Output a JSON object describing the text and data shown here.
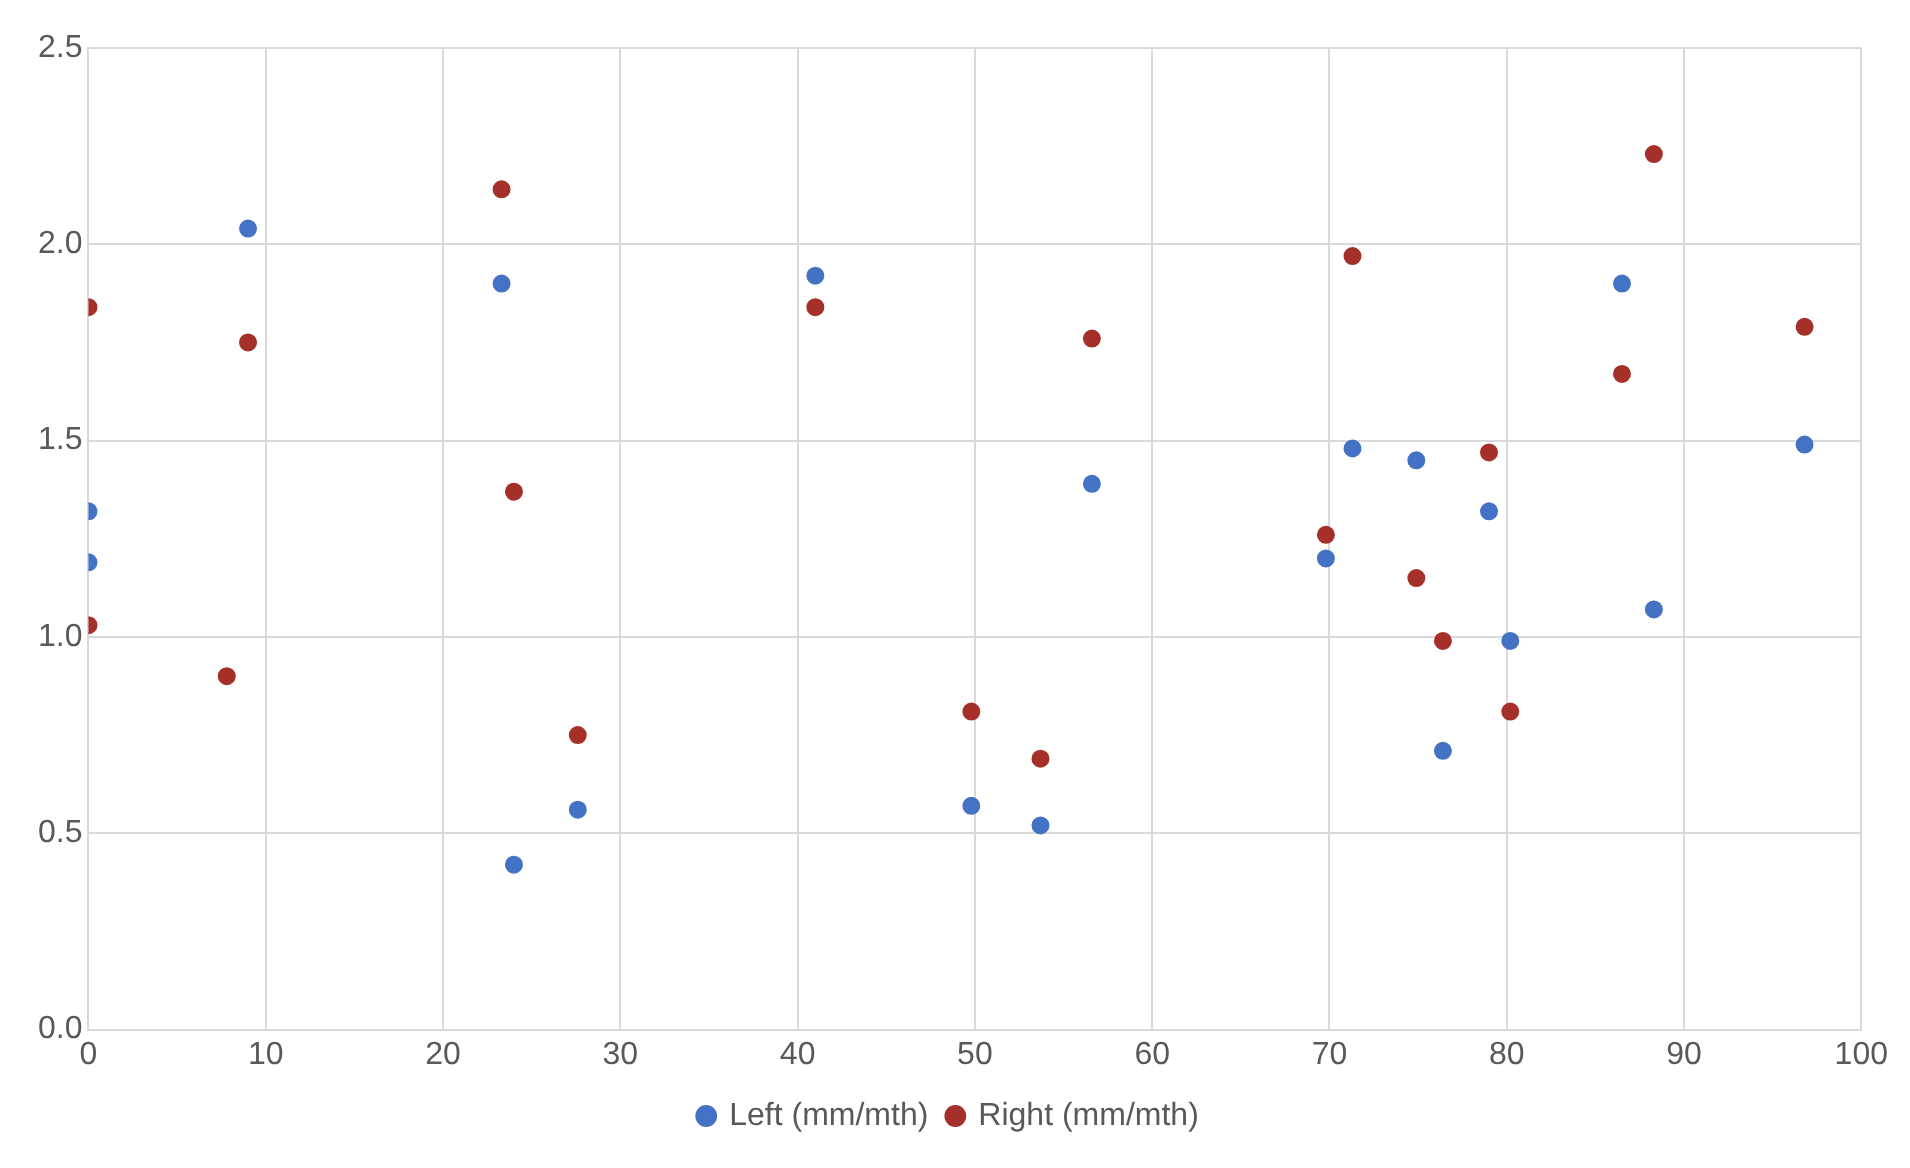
{
  "chart_data": {
    "type": "scatter",
    "xlim": [
      0,
      100
    ],
    "xticks": [
      0,
      10,
      20,
      30,
      40,
      50,
      60,
      70,
      80,
      90,
      100
    ],
    "ylim": [
      0,
      2.5
    ],
    "yticks": [
      {
        "value": 0,
        "label": "0.0"
      },
      {
        "value": 0.5,
        "label": "0.5"
      },
      {
        "value": 1,
        "label": "1.0"
      },
      {
        "value": 1.5,
        "label": "1.5"
      },
      {
        "value": 2,
        "label": "2.0"
      },
      {
        "value": 2.5,
        "label": "2.5"
      }
    ],
    "grid": true,
    "legend": "bottom",
    "marker": "circle",
    "series": [
      {
        "name": "Left (mm/mth)",
        "color": "#4472c4",
        "x": [
          0,
          0,
          9,
          23.3,
          24,
          27.6,
          41,
          49.8,
          53.7,
          56.6,
          69.8,
          71.3,
          74.9,
          76.4,
          79,
          80.2,
          86.5,
          88.3,
          96.8
        ],
        "values": [
          1.32,
          1.19,
          2.04,
          1.9,
          0.42,
          0.56,
          1.92,
          0.57,
          0.52,
          1.39,
          1.2,
          1.48,
          1.45,
          0.71,
          1.32,
          0.99,
          1.9,
          1.07,
          1.49
        ]
      },
      {
        "name": "Right (mm/mth)",
        "color": "#a5302a",
        "x": [
          0,
          0,
          7.8,
          9,
          23.3,
          24,
          27.6,
          41,
          49.8,
          53.7,
          56.6,
          69.8,
          71.3,
          74.9,
          76.4,
          79,
          80.2,
          86.5,
          88.3,
          96.8
        ],
        "values": [
          1.84,
          1.03,
          0.9,
          1.75,
          2.14,
          1.37,
          0.75,
          1.84,
          0.81,
          0.69,
          1.76,
          1.26,
          1.97,
          1.15,
          0.99,
          1.47,
          0.81,
          1.67,
          2.23,
          1.79
        ]
      }
    ]
  }
}
